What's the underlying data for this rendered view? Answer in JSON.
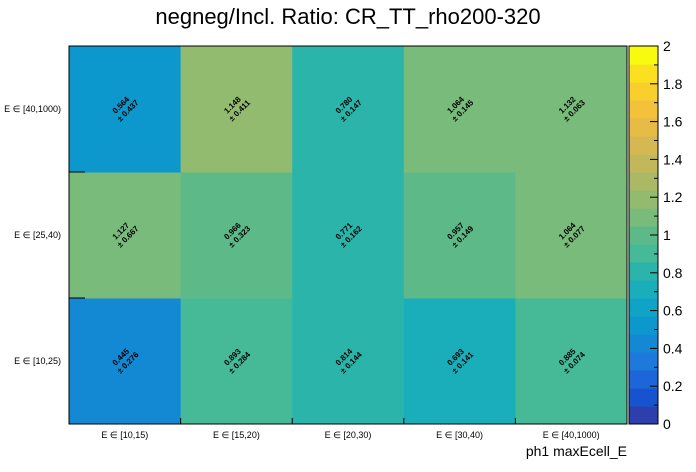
{
  "chart_data": {
    "type": "heatmap",
    "title": "negneg/Incl. Ratio: CR_TT_rho200-320",
    "xlabel": "ph1 maxEcell_E",
    "ylabel": "",
    "x_categories": [
      "E ∈ [10,15)",
      "E ∈ [15,20)",
      "E ∈ [20,30)",
      "E ∈ [30,40)",
      "E ∈ [40,1000)"
    ],
    "y_categories": [
      "E ∈ [10,25)",
      "E ∈ [25,40)",
      "E ∈ [40,1000)"
    ],
    "values": [
      [
        0.445,
        0.893,
        0.814,
        0.693,
        0.885
      ],
      [
        1.127,
        0.966,
        0.771,
        0.957,
        1.064
      ],
      [
        0.564,
        1.148,
        0.78,
        1.064,
        1.132
      ]
    ],
    "errors": [
      [
        0.276,
        0.284,
        0.144,
        0.141,
        0.074
      ],
      [
        0.667,
        0.323,
        0.162,
        0.149,
        0.077
      ],
      [
        0.437,
        0.411,
        0.147,
        0.145,
        0.063
      ]
    ],
    "value_labels": [
      [
        "0.445",
        "0.893",
        "0.814",
        "0.693",
        "0.885"
      ],
      [
        "1.127",
        "0.966",
        "0.771",
        "0.957",
        "1.064"
      ],
      [
        "0.564",
        "1.148",
        "0.780",
        "1.064",
        "1.132"
      ]
    ],
    "error_labels": [
      [
        "± 0.276",
        "± 0.284",
        "± 0.144",
        "± 0.141",
        "± 0.074"
      ],
      [
        "± 0.667",
        "± 0.323",
        "± 0.162",
        "± 0.149",
        "± 0.077"
      ],
      [
        "± 0.437",
        "± 0.411",
        "± 0.147",
        "± 0.145",
        "± 0.063"
      ]
    ],
    "zlim": [
      0,
      2
    ],
    "z_ticks": [
      "0",
      "0.2",
      "0.4",
      "0.6",
      "0.8",
      "1",
      "1.2",
      "1.4",
      "1.6",
      "1.8",
      "2"
    ],
    "palette": [
      "#2c3fad",
      "#1753cf",
      "#1d66d9",
      "#1d79da",
      "#1388d3",
      "#0c98cc",
      "#0fa4c6",
      "#1aaeba",
      "#2bb5aa",
      "#46b997",
      "#5dba88",
      "#78bb7b",
      "#93bb6f",
      "#acb964",
      "#c2b85b",
      "#d5b851",
      "#e6bb46",
      "#f3c23a",
      "#f9cf2e",
      "#fbe020",
      "#f9fb0e"
    ],
    "grid": false,
    "legend": "right colorbar"
  }
}
